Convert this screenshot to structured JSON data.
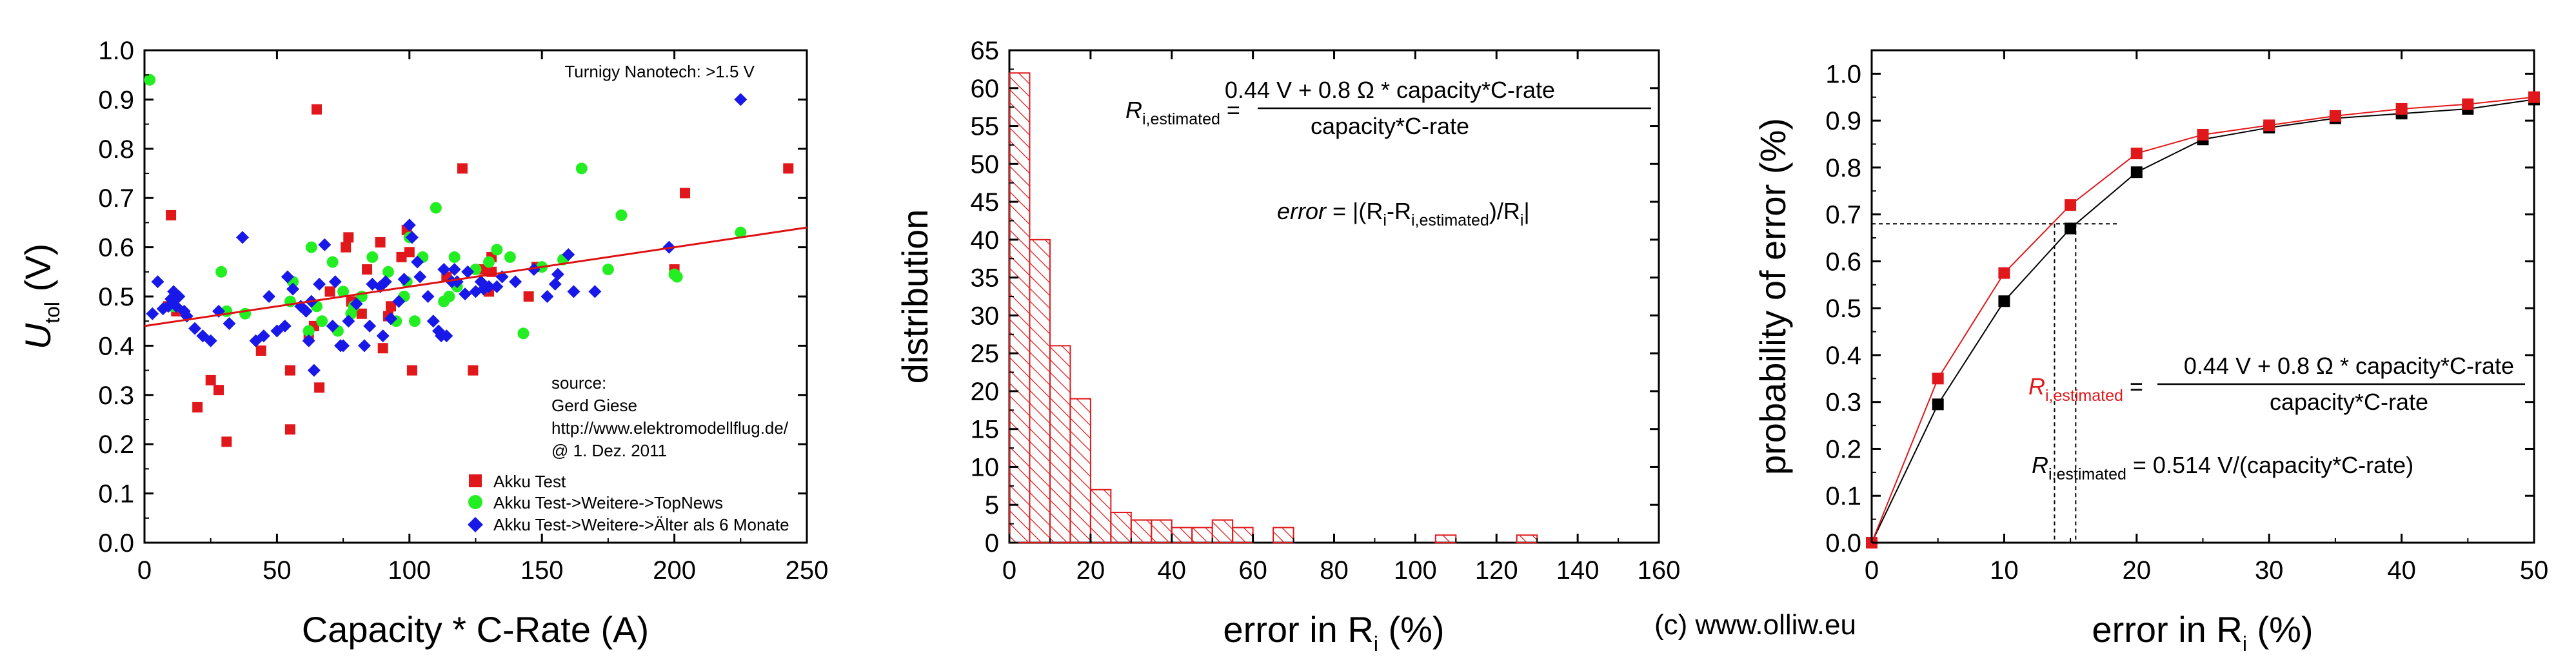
{
  "credit": "(c) www.olliw.eu",
  "chart_data": [
    {
      "type": "scatter",
      "xlabel": "Capacity * C-Rate (A)",
      "ylabel": {
        "main": "U",
        "sub": "tol",
        "unit": " (V)"
      },
      "xlim": [
        0,
        250
      ],
      "ylim": [
        0,
        1.0
      ],
      "xticks": [
        0,
        50,
        100,
        150,
        200,
        250
      ],
      "yticks": [
        "0.0",
        "0.1",
        "0.2",
        "0.3",
        "0.4",
        "0.5",
        "0.6",
        "0.7",
        "0.8",
        "0.9",
        "1.0"
      ],
      "annotation": "Turnigy Nanotech: >1.5 V",
      "source": [
        "source:",
        "Gerd Giese",
        "http://www.elektromodellflug.de/",
        "@ 1. Dez. 2011"
      ],
      "legend": [
        "Akku Test",
        "Akku Test->Weitere->TopNews",
        "Akku Test->Weitere->Älter als 6 Monate"
      ],
      "colors": {
        "red": "#e0181b",
        "green": "#22ee22",
        "blue": "#1818e8",
        "fit": "#dd1111"
      },
      "fit_line": {
        "x": [
          0,
          250
        ],
        "y": [
          0.44,
          0.64
        ]
      },
      "series": [
        {
          "name": "Akku Test",
          "points": [
            [
              9,
              0.48
            ],
            [
              10,
              0.665
            ],
            [
              12,
              0.47
            ],
            [
              20,
              0.275
            ],
            [
              25,
              0.33
            ],
            [
              28,
              0.31
            ],
            [
              31,
              0.205
            ],
            [
              44,
              0.39
            ],
            [
              55,
              0.23
            ],
            [
              55,
              0.35
            ],
            [
              62,
              0.42
            ],
            [
              64,
              0.44
            ],
            [
              65,
              0.88
            ],
            [
              66,
              0.315
            ],
            [
              70,
              0.51
            ],
            [
              76,
              0.6
            ],
            [
              77,
              0.62
            ],
            [
              78,
              0.49
            ],
            [
              82,
              0.465
            ],
            [
              84,
              0.555
            ],
            [
              89,
              0.61
            ],
            [
              90,
              0.395
            ],
            [
              92,
              0.46
            ],
            [
              93,
              0.48
            ],
            [
              97,
              0.58
            ],
            [
              99,
              0.635
            ],
            [
              100,
              0.59
            ],
            [
              101,
              0.35
            ],
            [
              114,
              0.54
            ],
            [
              120,
              0.76
            ],
            [
              124,
              0.35
            ],
            [
              128,
              0.555
            ],
            [
              130,
              0.51
            ],
            [
              131,
              0.55
            ],
            [
              131,
              0.58
            ],
            [
              145,
              0.5
            ],
            [
              148,
              0.56
            ],
            [
              200,
              0.555
            ],
            [
              204,
              0.71
            ],
            [
              243,
              0.76
            ]
          ]
        },
        {
          "name": "Akku Test->Weitere->TopNews",
          "points": [
            [
              2,
              0.94
            ],
            [
              11,
              0.48
            ],
            [
              29,
              0.55
            ],
            [
              31,
              0.47
            ],
            [
              38,
              0.465
            ],
            [
              55,
              0.49
            ],
            [
              56,
              0.53
            ],
            [
              62,
              0.43
            ],
            [
              63,
              0.6
            ],
            [
              65,
              0.48
            ],
            [
              67,
              0.45
            ],
            [
              71,
              0.57
            ],
            [
              73,
              0.43
            ],
            [
              75,
              0.51
            ],
            [
              78,
              0.465
            ],
            [
              79,
              0.48
            ],
            [
              82,
              0.5
            ],
            [
              86,
              0.58
            ],
            [
              92,
              0.55
            ],
            [
              95,
              0.45
            ],
            [
              98,
              0.5
            ],
            [
              99,
              0.53
            ],
            [
              100,
              0.62
            ],
            [
              102,
              0.45
            ],
            [
              105,
              0.58
            ],
            [
              110,
              0.68
            ],
            [
              113,
              0.49
            ],
            [
              115,
              0.5
            ],
            [
              117,
              0.58
            ],
            [
              118,
              0.52
            ],
            [
              125,
              0.555
            ],
            [
              130,
              0.57
            ],
            [
              133,
              0.595
            ],
            [
              138,
              0.58
            ],
            [
              143,
              0.425
            ],
            [
              150,
              0.56
            ],
            [
              158,
              0.575
            ],
            [
              165,
              0.76
            ],
            [
              175,
              0.555
            ],
            [
              180,
              0.665
            ],
            [
              200,
              0.545
            ],
            [
              201,
              0.54
            ],
            [
              225,
              0.63
            ]
          ]
        },
        {
          "name": "Akku Test->Weitere->Älter als 6 Monate",
          "points": [
            [
              3,
              0.465
            ],
            [
              5,
              0.53
            ],
            [
              7,
              0.475
            ],
            [
              9,
              0.48
            ],
            [
              10,
              0.495
            ],
            [
              11,
              0.51
            ],
            [
              12,
              0.48
            ],
            [
              13,
              0.5
            ],
            [
              15,
              0.47
            ],
            [
              16,
              0.46
            ],
            [
              19,
              0.435
            ],
            [
              22,
              0.42
            ],
            [
              25,
              0.41
            ],
            [
              28,
              0.47
            ],
            [
              32,
              0.445
            ],
            [
              37,
              0.62
            ],
            [
              42,
              0.41
            ],
            [
              45,
              0.42
            ],
            [
              47,
              0.5
            ],
            [
              50,
              0.43
            ],
            [
              53,
              0.44
            ],
            [
              54,
              0.54
            ],
            [
              56,
              0.515
            ],
            [
              59,
              0.48
            ],
            [
              61,
              0.47
            ],
            [
              62,
              0.41
            ],
            [
              63,
              0.49
            ],
            [
              64,
              0.35
            ],
            [
              66,
              0.525
            ],
            [
              68,
              0.605
            ],
            [
              71,
              0.44
            ],
            [
              72,
              0.53
            ],
            [
              74,
              0.4
            ],
            [
              75,
              0.4
            ],
            [
              77,
              0.45
            ],
            [
              80,
              0.485
            ],
            [
              83,
              0.4
            ],
            [
              85,
              0.44
            ],
            [
              86,
              0.525
            ],
            [
              89,
              0.52
            ],
            [
              90,
              0.42
            ],
            [
              91,
              0.53
            ],
            [
              93,
              0.455
            ],
            [
              96,
              0.49
            ],
            [
              98,
              0.535
            ],
            [
              100,
              0.645
            ],
            [
              101,
              0.62
            ],
            [
              103,
              0.57
            ],
            [
              104,
              0.54
            ],
            [
              107,
              0.5
            ],
            [
              109,
              0.45
            ],
            [
              111,
              0.43
            ],
            [
              112,
              0.42
            ],
            [
              113,
              0.555
            ],
            [
              114,
              0.42
            ],
            [
              116,
              0.53
            ],
            [
              117,
              0.555
            ],
            [
              118,
              0.53
            ],
            [
              121,
              0.505
            ],
            [
              122,
              0.55
            ],
            [
              125,
              0.51
            ],
            [
              127,
              0.53
            ],
            [
              128,
              0.515
            ],
            [
              130,
              0.52
            ],
            [
              133,
              0.52
            ],
            [
              135,
              0.54
            ],
            [
              140,
              0.53
            ],
            [
              147,
              0.555
            ],
            [
              152,
              0.5
            ],
            [
              155,
              0.525
            ],
            [
              156,
              0.545
            ],
            [
              160,
              0.585
            ],
            [
              162,
              0.51
            ],
            [
              170,
              0.51
            ],
            [
              198,
              0.6
            ],
            [
              225,
              0.9
            ]
          ]
        }
      ]
    },
    {
      "type": "bar",
      "xlabel": {
        "main": "error in R",
        "sub": "i",
        "unit": " (%)"
      },
      "ylabel": "distribution",
      "xlim": [
        0,
        160
      ],
      "ylim": [
        0,
        65
      ],
      "xticks": [
        0,
        20,
        40,
        60,
        80,
        100,
        120,
        140,
        160
      ],
      "yticks": [
        0,
        5,
        10,
        15,
        20,
        25,
        30,
        35,
        40,
        45,
        50,
        55,
        60,
        65
      ],
      "bin_width": 5,
      "bin_starts": [
        0,
        5,
        10,
        15,
        20,
        25,
        30,
        35,
        40,
        45,
        50,
        55,
        60,
        65,
        70,
        75,
        80,
        85,
        90,
        95,
        100,
        105,
        110,
        115,
        120,
        125
      ],
      "values": [
        62,
        40,
        26,
        19,
        7,
        4,
        3,
        3,
        2,
        2,
        3,
        2,
        0,
        2,
        0,
        0,
        0,
        0,
        0,
        0,
        0,
        1,
        0,
        0,
        0,
        1
      ],
      "formula": {
        "lhs": "R",
        "lhs_sub": "i,estimated",
        "numerator": "0.44 V + 0.8 Ω * capacity*C-rate",
        "denominator": "capacity*C-rate"
      },
      "error_formula": {
        "a": "error",
        "b": " = |(R",
        "c": "i",
        "d": "-R",
        "e": "i,estimated",
        "f": ")/R",
        "g": "i",
        "h": "|"
      },
      "colors": {
        "bar": "#e0181b"
      }
    },
    {
      "type": "line",
      "xlabel": {
        "main": "error in R",
        "sub": "i",
        "unit": " (%)"
      },
      "ylabel": "probability of error (%)",
      "xlim": [
        0,
        50
      ],
      "ylim": [
        0,
        1.05
      ],
      "xticks": [
        0,
        10,
        20,
        30,
        40,
        50
      ],
      "yticks": [
        "0.0",
        "0.1",
        "0.2",
        "0.3",
        "0.4",
        "0.5",
        "0.6",
        "0.7",
        "0.8",
        "0.9",
        "1.0"
      ],
      "series": [
        {
          "color": "#000000",
          "x": [
            0,
            5,
            10,
            15,
            20,
            25,
            30,
            35,
            40,
            45,
            50
          ],
          "y": [
            0,
            0.295,
            0.515,
            0.67,
            0.79,
            0.86,
            0.885,
            0.905,
            0.915,
            0.925,
            0.945
          ]
        },
        {
          "color": "#e0181b",
          "x": [
            0,
            5,
            10,
            15,
            20,
            25,
            30,
            35,
            40,
            45,
            50
          ],
          "y": [
            0,
            0.35,
            0.575,
            0.72,
            0.83,
            0.87,
            0.89,
            0.91,
            0.925,
            0.935,
            0.95
          ]
        }
      ],
      "reference": {
        "y": 0.68,
        "x_end": 18.5,
        "x_red": 13.8,
        "x_black": 15.4
      },
      "formula1": {
        "lhs": "R",
        "lhs_sub": "i,estimated",
        "numerator": "0.44 V + 0.8 Ω * capacity*C-rate",
        "denominator": "capacity*C-rate"
      },
      "formula2": {
        "lhs": "R",
        "lhs_sub": "i,estimated",
        "rhs": " = 0.514 V/(capacity*C-rate)"
      },
      "colors": {
        "red": "#e0181b",
        "black": "#000000"
      }
    }
  ]
}
